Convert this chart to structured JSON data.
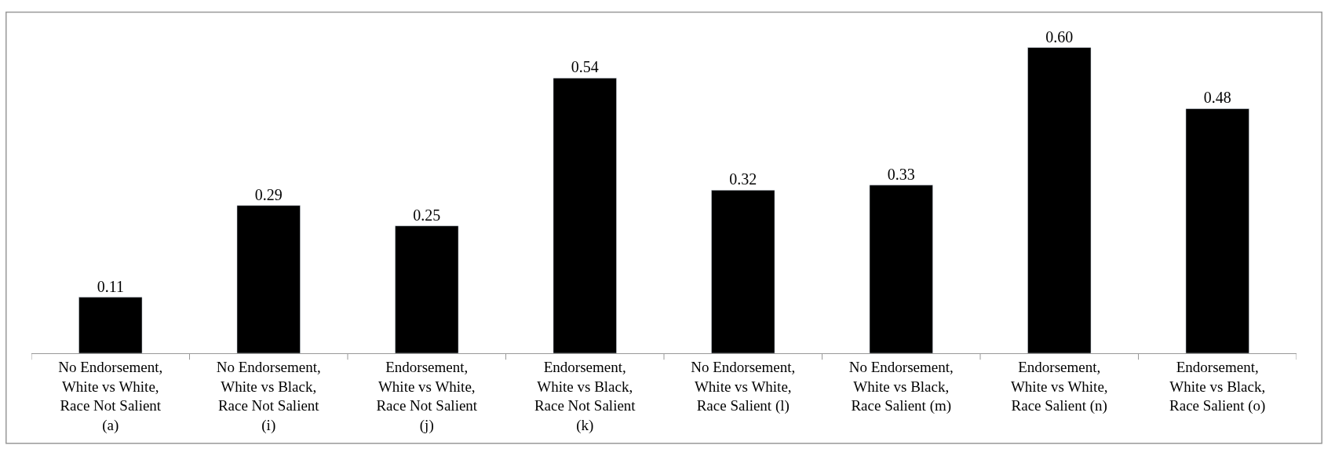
{
  "chart_data": {
    "type": "bar",
    "categories": [
      "No Endorsement,\nWhite vs White,\nRace Not Salient\n(a)",
      "No Endorsement,\nWhite vs Black,\nRace Not Salient\n(i)",
      "Endorsement,\nWhite vs White,\nRace Not Salient\n(j)",
      "Endorsement,\nWhite vs Black,\nRace Not Salient\n(k)",
      "No Endorsement,\nWhite vs White,\nRace Salient (l)",
      "No Endorsement,\nWhite vs Black,\nRace Salient (m)",
      "Endorsement,\nWhite vs White,\nRace Salient (n)",
      "Endorsement,\nWhite vs Black,\nRace Salient (o)"
    ],
    "values": [
      0.11,
      0.29,
      0.25,
      0.54,
      0.32,
      0.33,
      0.6,
      0.48
    ],
    "value_labels": [
      "0.11",
      "0.29",
      "0.25",
      "0.54",
      "0.32",
      "0.33",
      "0.60",
      "0.48"
    ],
    "color": "#000000"
  }
}
